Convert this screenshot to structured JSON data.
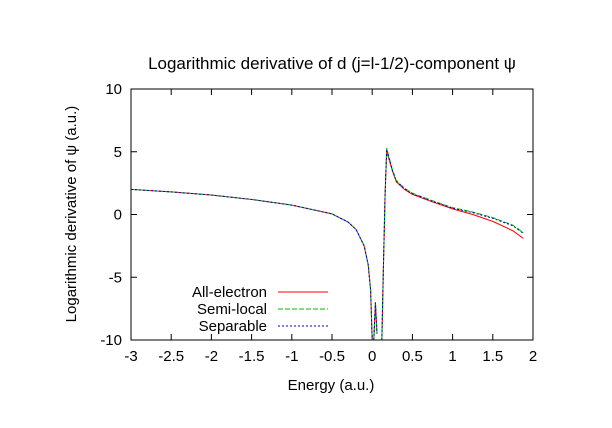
{
  "chart_data": {
    "type": "line",
    "title": "Logarithmic derivative of d (j=l-1/2)-component ψ",
    "xlabel": "Energy (a.u.)",
    "ylabel": "Logarithmic derivative of ψ (a.u.)",
    "xlim": [
      -3,
      2
    ],
    "ylim": [
      -10,
      10
    ],
    "x_ticks": [
      -3,
      -2.5,
      -2,
      -1.5,
      -1,
      -0.5,
      0,
      0.5,
      1,
      1.5,
      2
    ],
    "x_tick_labels": [
      "-3",
      "-2.5",
      "-2",
      "-1.5",
      "-1",
      "-0.5",
      "0",
      "0.5",
      "1",
      "1.5",
      "2"
    ],
    "y_ticks": [
      -10,
      -5,
      0,
      5,
      10
    ],
    "y_tick_labels": [
      "-10",
      "-5",
      "0",
      "5",
      "10"
    ],
    "grid": false,
    "legend_position": "bottom-left",
    "series": [
      {
        "name": "All-electron",
        "color": "#ff0000",
        "dash": "solid",
        "segments": [
          [
            [
              -3.0,
              2.0
            ],
            [
              -2.5,
              1.8
            ],
            [
              -2.0,
              1.55
            ],
            [
              -1.5,
              1.2
            ],
            [
              -1.0,
              0.75
            ],
            [
              -0.5,
              0.05
            ],
            [
              -0.3,
              -0.6
            ],
            [
              -0.2,
              -1.2
            ],
            [
              -0.1,
              -2.5
            ],
            [
              -0.05,
              -4.0
            ],
            [
              -0.02,
              -6.0
            ],
            [
              0.0,
              -10.0
            ]
          ],
          [
            [
              0.02,
              -10.0
            ],
            [
              0.04,
              -7.0
            ],
            [
              0.06,
              -9.5
            ]
          ],
          [
            [
              0.12,
              -10.0
            ],
            [
              0.14,
              -4.0
            ],
            [
              0.16,
              1.5
            ],
            [
              0.18,
              5.0
            ],
            [
              0.2,
              4.6
            ],
            [
              0.25,
              3.5
            ],
            [
              0.3,
              2.6
            ],
            [
              0.4,
              2.0
            ],
            [
              0.5,
              1.6
            ],
            [
              0.75,
              1.0
            ],
            [
              1.0,
              0.45
            ],
            [
              1.25,
              0.0
            ],
            [
              1.5,
              -0.55
            ],
            [
              1.75,
              -1.3
            ],
            [
              1.88,
              -1.9
            ]
          ]
        ]
      },
      {
        "name": "Semi-local",
        "color": "#00bb00",
        "dash": "dashed",
        "segments": [
          [
            [
              -3.0,
              2.0
            ],
            [
              -2.5,
              1.8
            ],
            [
              -2.0,
              1.55
            ],
            [
              -1.5,
              1.2
            ],
            [
              -1.0,
              0.75
            ],
            [
              -0.5,
              0.05
            ],
            [
              -0.3,
              -0.6
            ],
            [
              -0.2,
              -1.2
            ],
            [
              -0.1,
              -2.5
            ],
            [
              -0.05,
              -4.0
            ],
            [
              -0.02,
              -6.0
            ],
            [
              0.0,
              -10.0
            ]
          ],
          [
            [
              0.02,
              -10.0
            ],
            [
              0.04,
              -7.0
            ],
            [
              0.06,
              -9.5
            ]
          ],
          [
            [
              0.12,
              -10.0
            ],
            [
              0.14,
              -4.0
            ],
            [
              0.16,
              1.5
            ],
            [
              0.18,
              5.3
            ],
            [
              0.2,
              4.8
            ],
            [
              0.25,
              3.6
            ],
            [
              0.3,
              2.7
            ],
            [
              0.4,
              2.1
            ],
            [
              0.5,
              1.7
            ],
            [
              0.75,
              1.1
            ],
            [
              1.0,
              0.55
            ],
            [
              1.25,
              0.2
            ],
            [
              1.5,
              -0.25
            ],
            [
              1.75,
              -0.85
            ],
            [
              1.88,
              -1.45
            ]
          ]
        ]
      },
      {
        "name": "Separable",
        "color": "#0000cc",
        "dash": "dotted",
        "segments": [
          [
            [
              -3.0,
              2.0
            ],
            [
              -2.5,
              1.8
            ],
            [
              -2.0,
              1.55
            ],
            [
              -1.5,
              1.2
            ],
            [
              -1.0,
              0.75
            ],
            [
              -0.5,
              0.05
            ],
            [
              -0.3,
              -0.6
            ],
            [
              -0.2,
              -1.2
            ],
            [
              -0.1,
              -2.5
            ],
            [
              -0.05,
              -4.0
            ],
            [
              -0.02,
              -6.0
            ],
            [
              0.0,
              -10.0
            ]
          ],
          [
            [
              0.02,
              -10.0
            ],
            [
              0.04,
              -7.0
            ],
            [
              0.06,
              -9.5
            ]
          ],
          [
            [
              0.12,
              -10.0
            ],
            [
              0.14,
              -4.0
            ],
            [
              0.16,
              1.5
            ],
            [
              0.18,
              5.2
            ],
            [
              0.2,
              4.7
            ],
            [
              0.25,
              3.55
            ],
            [
              0.3,
              2.65
            ],
            [
              0.4,
              2.05
            ],
            [
              0.5,
              1.65
            ],
            [
              0.75,
              1.05
            ],
            [
              1.0,
              0.5
            ],
            [
              1.25,
              0.15
            ],
            [
              1.5,
              -0.3
            ],
            [
              1.75,
              -0.9
            ],
            [
              1.88,
              -1.5
            ]
          ]
        ]
      }
    ]
  }
}
